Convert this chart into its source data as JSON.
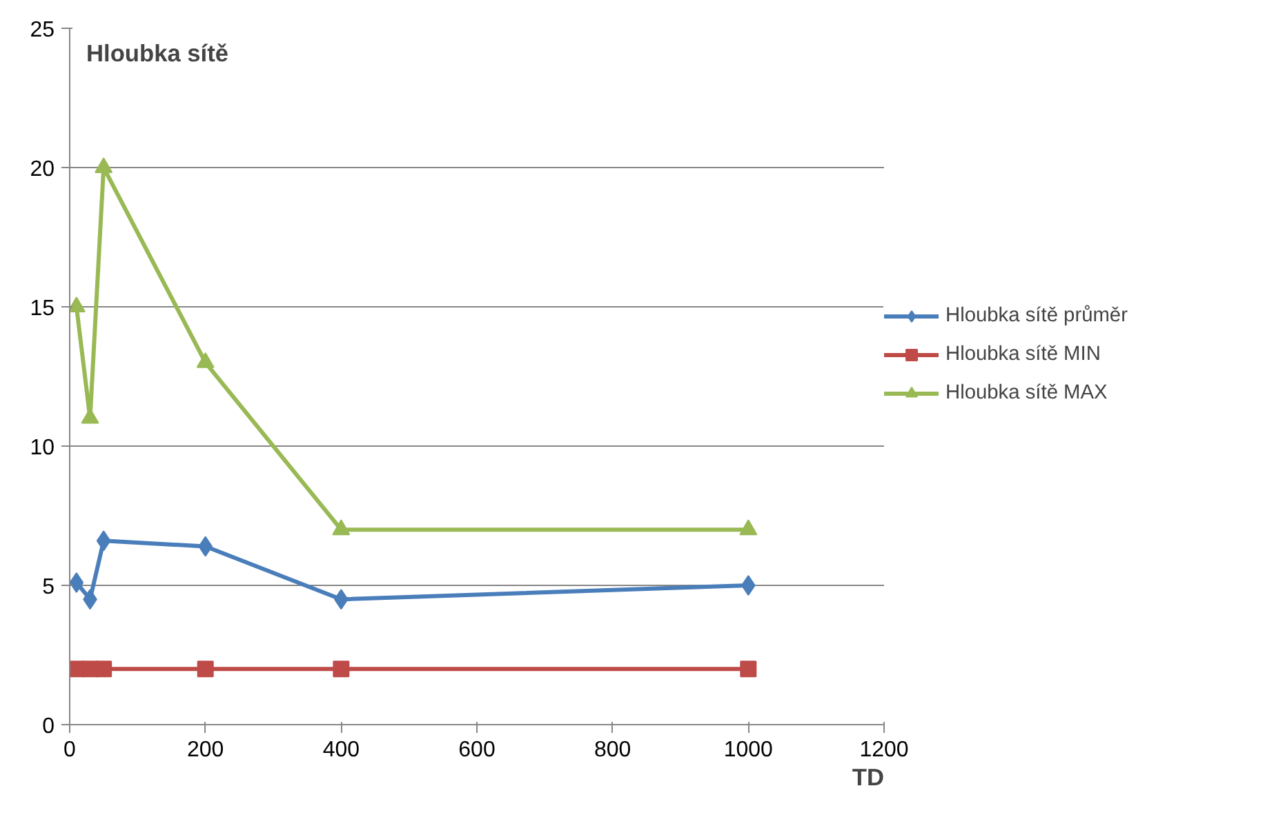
{
  "chart_data": {
    "type": "line",
    "title": "Hloubka sítě",
    "xlabel": "TD",
    "x": [
      10,
      30,
      50,
      200,
      400,
      1000
    ],
    "series": [
      {
        "name": "Hloubka sítě průměr",
        "color": "#4a7ebb",
        "marker": "diamond",
        "values": [
          5.1,
          4.5,
          6.6,
          6.4,
          4.5,
          5.0
        ]
      },
      {
        "name": "Hloubka sítě MIN",
        "color": "#be4b48",
        "marker": "square",
        "values": [
          2,
          2,
          2,
          2,
          2,
          2
        ]
      },
      {
        "name": "Hloubka sítě MAX",
        "color": "#98b954",
        "marker": "triangle",
        "values": [
          15,
          11,
          20,
          13,
          7,
          7
        ]
      }
    ],
    "xlim": [
      0,
      1200
    ],
    "xticks": [
      0,
      200,
      400,
      600,
      800,
      1000,
      1200
    ],
    "ylim": [
      0,
      25
    ],
    "yticks": [
      0,
      5,
      10,
      15,
      20,
      25
    ],
    "grid": "y",
    "legend": "right",
    "line_style": "solid"
  }
}
